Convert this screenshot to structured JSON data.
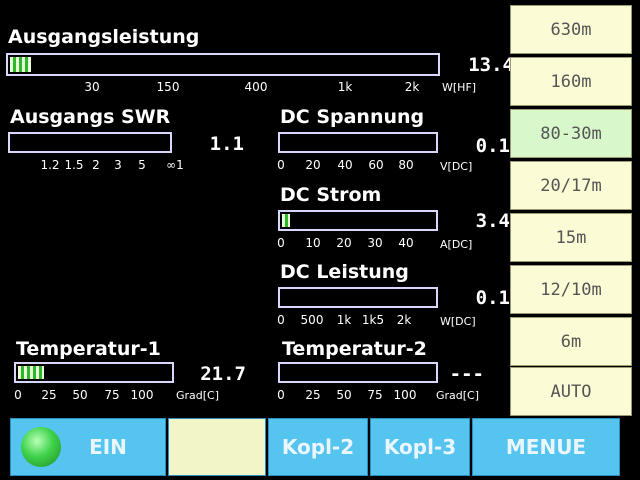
{
  "meters": {
    "ausgangsleistung": {
      "label": "Ausgangsleistung",
      "value": "13.4",
      "unit": "W[HF]",
      "ticks": [
        "30",
        "150",
        "400",
        "1k",
        "2k"
      ],
      "fill": 0.05
    },
    "swr": {
      "label": "Ausgangs SWR",
      "value": "1.1",
      "unit": "",
      "ticks": [
        "1.2",
        "1.5",
        "2",
        "3",
        "5",
        "∞1"
      ],
      "fill": 0
    },
    "dc_spannung": {
      "label": "DC Spannung",
      "value": "0.1",
      "unit": "V[DC]",
      "ticks": [
        "0",
        "20",
        "40",
        "60",
        "80"
      ],
      "fill": 0
    },
    "dc_strom": {
      "label": "DC Strom",
      "value": "3.4",
      "unit": "A[DC]",
      "ticks": [
        "0",
        "10",
        "20",
        "30",
        "40"
      ],
      "fill": 0.05
    },
    "dc_leistung": {
      "label": "DC Leistung",
      "value": "0.1",
      "unit": "W[DC]",
      "ticks": [
        "0",
        "500",
        "1k",
        "1k5",
        "2k"
      ],
      "fill": 0
    },
    "temperatur1": {
      "label": "Temperatur-1",
      "value": "21.7",
      "unit": "Grad[C]",
      "ticks": [
        "0",
        "25",
        "50",
        "75",
        "100"
      ],
      "fill": 0.17
    },
    "temperatur2": {
      "label": "Temperatur-2",
      "value": "---",
      "unit": "Grad[C]",
      "ticks": [
        "0",
        "25",
        "50",
        "75",
        "100"
      ],
      "fill": 0
    }
  },
  "bands": [
    "630m",
    "160m",
    "80-30m",
    "20/17m",
    "15m",
    "12/10m",
    "6m",
    "AUTO"
  ],
  "active_band": "80-30m",
  "bottom": {
    "ein": "EIN",
    "blank": "",
    "kopl2": "Kopl-2",
    "kopl3": "Kopl-3",
    "menue": "MENUE"
  },
  "colors": {
    "bar_border": "#d8d8ff",
    "fill_light": "#eaffd8",
    "fill_green": "#2bb82b",
    "band_bg": "#fbfbd6",
    "active_band_bg": "#d8f8cc",
    "button_blue": "#55c4ee"
  }
}
